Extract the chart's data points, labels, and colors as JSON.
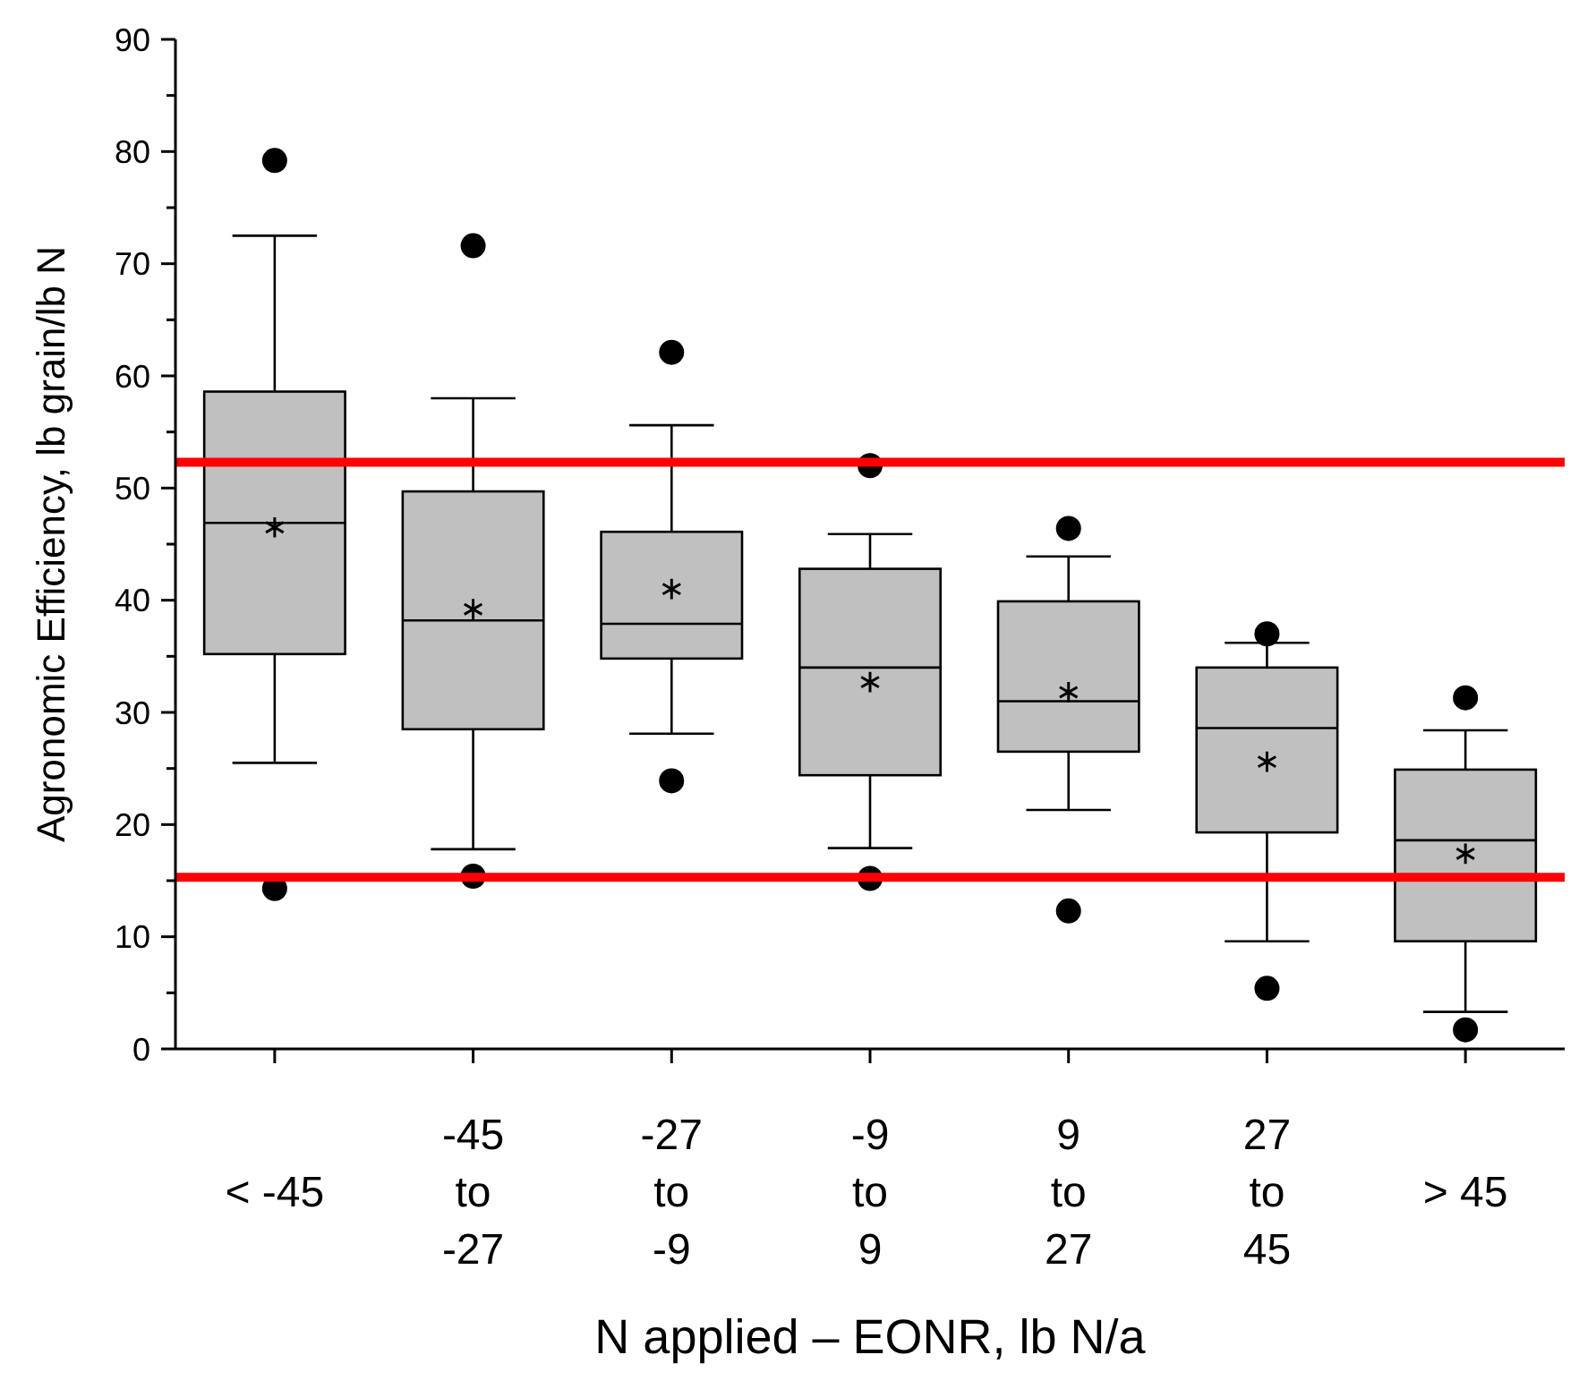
{
  "chart_data": {
    "type": "box",
    "xlabel": "N applied – EONR, lb N/a",
    "ylabel": "Agronomic Efficiency, lb grain/lb N",
    "categories": [
      "< -45",
      "-45\nto\n-27",
      "-27\nto\n-9",
      "-9\nto\n9",
      "9\nto\n27",
      "27\nto\n45",
      "> 45"
    ],
    "color": "#c0c0c0",
    "boxes": [
      {
        "low": 25.5,
        "q1": 35.2,
        "median": 46.9,
        "q3": 58.6,
        "high": 72.5,
        "mean": 46.5,
        "outliers": [
          79.2,
          14.3
        ]
      },
      {
        "low": 17.8,
        "q1": 28.5,
        "median": 38.2,
        "q3": 49.7,
        "high": 58,
        "mean": 39.2,
        "outliers": [
          71.6,
          15.4
        ]
      },
      {
        "low": 28.1,
        "q1": 34.8,
        "median": 37.9,
        "q3": 46.1,
        "high": 55.6,
        "mean": 41,
        "outliers": [
          62.1,
          23.9
        ]
      },
      {
        "low": 17.9,
        "q1": 24.4,
        "median": 34,
        "q3": 42.8,
        "high": 45.9,
        "mean": 32.7,
        "outliers": [
          52,
          15.2
        ]
      },
      {
        "low": 21.3,
        "q1": 26.5,
        "median": 31,
        "q3": 39.9,
        "high": 43.9,
        "mean": 31.8,
        "outliers": [
          46.4,
          12.3
        ]
      },
      {
        "low": 9.6,
        "q1": 19.3,
        "median": 28.6,
        "q3": 34,
        "high": 36.2,
        "mean": 25.6,
        "outliers": [
          37,
          5.4
        ]
      },
      {
        "low": 3.3,
        "q1": 9.6,
        "median": 18.6,
        "q3": 24.9,
        "high": 28.4,
        "mean": 17.4,
        "outliers": [
          31.3,
          1.7
        ]
      }
    ],
    "ylim": [
      0,
      90
    ],
    "yticks": [
      0,
      {
        "value": 5,
        "label": null
      },
      10,
      {
        "value": 15,
        "label": null
      },
      20,
      {
        "value": 25,
        "label": null
      },
      30,
      {
        "value": 35,
        "label": null
      },
      40,
      {
        "value": 45,
        "label": null
      },
      50,
      {
        "value": 55,
        "label": null
      },
      60,
      {
        "value": 65,
        "label": null
      },
      70,
      {
        "value": 75,
        "label": null
      },
      80,
      {
        "value": 85,
        "label": null
      },
      90
    ],
    "ref_lines": [
      {
        "axis": "y",
        "value": 52.3,
        "color": "#ff0000"
      },
      {
        "axis": "y",
        "value": 15.3,
        "color": "#ff0000"
      }
    ]
  }
}
